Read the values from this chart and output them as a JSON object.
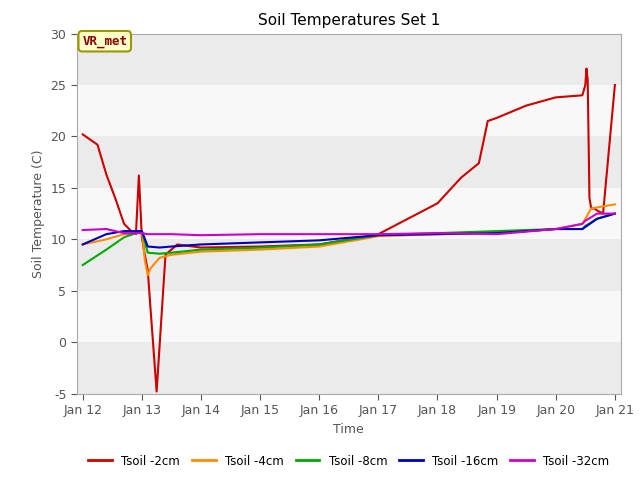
{
  "title": "Soil Temperatures Set 1",
  "xlabel": "Time",
  "ylabel": "Soil Temperature (C)",
  "ylim": [
    -5,
    30
  ],
  "background_color": "#ffffff",
  "plot_bg_color": "#ffffff",
  "annotation_label": "VR_met",
  "series": {
    "Tsoil -2cm": {
      "color": "#cc0000",
      "x_days": [
        0,
        0.25,
        0.4,
        0.55,
        0.7,
        0.82,
        0.9,
        0.95,
        1.0,
        1.05,
        1.1,
        1.15,
        1.25,
        1.4,
        1.6,
        2.0,
        3.0,
        4.0,
        4.3,
        4.8,
        5.0,
        5.5,
        6.0,
        6.4,
        6.7,
        6.85,
        7.0,
        7.5,
        8.0,
        8.45,
        8.5,
        8.52,
        8.54,
        8.57,
        8.6,
        8.65,
        8.7,
        8.8,
        9.0
      ],
      "y": [
        20.2,
        19.2,
        16.3,
        14.0,
        11.5,
        10.8,
        10.5,
        16.2,
        10.2,
        8.5,
        7.0,
        3.0,
        -4.8,
        8.5,
        9.5,
        9.2,
        9.3,
        9.5,
        9.8,
        10.2,
        10.5,
        12.0,
        13.5,
        16.0,
        17.4,
        21.5,
        21.8,
        23.0,
        23.8,
        24.0,
        25.0,
        26.6,
        25.5,
        14.0,
        13.0,
        13.0,
        12.8,
        12.5,
        25.0
      ]
    },
    "Tsoil -4cm": {
      "color": "#ff8c00",
      "x_days": [
        0,
        0.4,
        0.7,
        0.85,
        1.0,
        1.05,
        1.1,
        1.15,
        1.3,
        1.5,
        2.0,
        3.0,
        4.0,
        5.0,
        6.0,
        7.0,
        8.0,
        8.45,
        8.5,
        8.6,
        8.8,
        9.0
      ],
      "y": [
        9.5,
        10.0,
        10.5,
        10.5,
        10.8,
        8.0,
        6.5,
        7.2,
        8.2,
        8.5,
        8.8,
        9.0,
        9.3,
        10.3,
        10.5,
        10.6,
        11.0,
        11.5,
        12.0,
        13.0,
        13.2,
        13.4
      ]
    },
    "Tsoil -8cm": {
      "color": "#00aa00",
      "x_days": [
        0,
        0.4,
        0.7,
        0.85,
        1.0,
        1.1,
        1.3,
        1.5,
        2.0,
        3.0,
        4.0,
        5.0,
        6.0,
        7.0,
        8.0,
        8.45,
        8.5,
        8.7,
        9.0
      ],
      "y": [
        7.5,
        9.0,
        10.2,
        10.5,
        10.8,
        8.7,
        8.6,
        8.7,
        9.0,
        9.2,
        9.5,
        10.4,
        10.6,
        10.8,
        11.0,
        11.0,
        11.3,
        12.0,
        12.5
      ]
    },
    "Tsoil -16cm": {
      "color": "#0000bb",
      "x_days": [
        0,
        0.4,
        0.7,
        0.85,
        1.0,
        1.1,
        1.3,
        1.5,
        2.0,
        3.0,
        4.0,
        5.0,
        6.0,
        7.0,
        8.0,
        8.45,
        8.5,
        8.7,
        9.0
      ],
      "y": [
        9.5,
        10.5,
        10.8,
        10.8,
        10.8,
        9.3,
        9.2,
        9.3,
        9.5,
        9.7,
        9.9,
        10.4,
        10.5,
        10.6,
        11.0,
        11.0,
        11.2,
        12.0,
        12.5
      ]
    },
    "Tsoil -32cm": {
      "color": "#cc00cc",
      "x_days": [
        0,
        0.4,
        0.7,
        0.85,
        1.0,
        1.1,
        1.3,
        1.5,
        2.0,
        3.0,
        4.0,
        5.0,
        6.0,
        7.0,
        8.0,
        8.45,
        8.5,
        8.7,
        9.0
      ],
      "y": [
        10.9,
        11.0,
        10.6,
        10.6,
        10.6,
        10.5,
        10.5,
        10.5,
        10.4,
        10.5,
        10.5,
        10.5,
        10.6,
        10.5,
        11.0,
        11.5,
        11.8,
        12.5,
        12.5
      ]
    }
  },
  "legend_entries": [
    "Tsoil -2cm",
    "Tsoil -4cm",
    "Tsoil -8cm",
    "Tsoil -16cm",
    "Tsoil -32cm"
  ],
  "legend_colors": [
    "#cc0000",
    "#ff8c00",
    "#00aa00",
    "#0000bb",
    "#cc00cc"
  ],
  "xtick_labels": [
    "Jan 12",
    "Jan 13",
    "Jan 14",
    "Jan 15",
    "Jan 16",
    "Jan 17",
    "Jan 18",
    "Jan 19",
    "Jan 20",
    "Jan 21"
  ],
  "xtick_days": [
    0,
    1,
    2,
    3,
    4,
    5,
    6,
    7,
    8,
    9
  ],
  "yticks": [
    -5,
    0,
    5,
    10,
    15,
    20,
    25,
    30
  ],
  "band_color_light": "#ebebeb",
  "band_color_white": "#f8f8f8"
}
